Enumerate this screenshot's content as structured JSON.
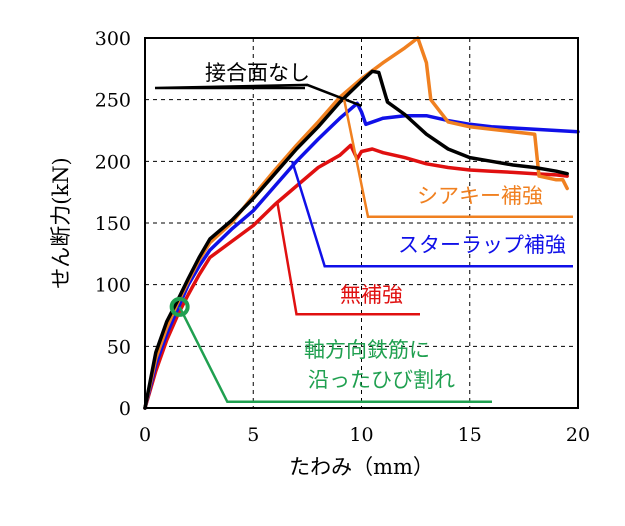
{
  "chart_data": {
    "type": "line",
    "xlabel": "たわみ（mm）",
    "ylabel": "せん断力(kN)",
    "xlim": [
      0,
      20
    ],
    "ylim": [
      0,
      300
    ],
    "xticks": [
      0,
      5,
      10,
      15,
      20
    ],
    "yticks": [
      0,
      50,
      100,
      150,
      200,
      250,
      300
    ],
    "grid": "dashed",
    "series": [
      {
        "name": "接合面なし",
        "color": "#000000",
        "points": [
          [
            0,
            0
          ],
          [
            0.5,
            45
          ],
          [
            1,
            70
          ],
          [
            1.5,
            87
          ],
          [
            2,
            105
          ],
          [
            2.5,
            122
          ],
          [
            3,
            137
          ],
          [
            4,
            152
          ],
          [
            5,
            170
          ],
          [
            6,
            190
          ],
          [
            7,
            210
          ],
          [
            8,
            228
          ],
          [
            9,
            248
          ],
          [
            10,
            265
          ],
          [
            10.5,
            273
          ],
          [
            10.8,
            272
          ],
          [
            11,
            260
          ],
          [
            11.2,
            248
          ],
          [
            12,
            238
          ],
          [
            13,
            222
          ],
          [
            14,
            210
          ],
          [
            15,
            203
          ],
          [
            16,
            200
          ],
          [
            17,
            197
          ],
          [
            18,
            195
          ],
          [
            19,
            192
          ],
          [
            19.5,
            190
          ]
        ]
      },
      {
        "name": "シアキー補強",
        "color": "#f08020",
        "points": [
          [
            0,
            0
          ],
          [
            0.5,
            40
          ],
          [
            1,
            65
          ],
          [
            1.5,
            85
          ],
          [
            2,
            103
          ],
          [
            2.5,
            120
          ],
          [
            3,
            134
          ],
          [
            4,
            150
          ],
          [
            5,
            172
          ],
          [
            6,
            193
          ],
          [
            7,
            213
          ],
          [
            8,
            232
          ],
          [
            9,
            252
          ],
          [
            10,
            267
          ],
          [
            11,
            280
          ],
          [
            12,
            292
          ],
          [
            12.6,
            300
          ],
          [
            13,
            280
          ],
          [
            13.2,
            250
          ],
          [
            14,
            232
          ],
          [
            15,
            228
          ],
          [
            16,
            226
          ],
          [
            17,
            224
          ],
          [
            18,
            222
          ],
          [
            18.2,
            188
          ],
          [
            19,
            185
          ],
          [
            19.3,
            185
          ],
          [
            19.5,
            178
          ]
        ]
      },
      {
        "name": "スターラップ補強",
        "color": "#1010e8",
        "points": [
          [
            0,
            0
          ],
          [
            0.5,
            35
          ],
          [
            1,
            60
          ],
          [
            1.5,
            80
          ],
          [
            2,
            100
          ],
          [
            2.5,
            115
          ],
          [
            3,
            128
          ],
          [
            4,
            145
          ],
          [
            5,
            160
          ],
          [
            6,
            180
          ],
          [
            7,
            200
          ],
          [
            8,
            218
          ],
          [
            9,
            235
          ],
          [
            9.8,
            247
          ],
          [
            10,
            240
          ],
          [
            10.2,
            230
          ],
          [
            11,
            235
          ],
          [
            12,
            237
          ],
          [
            13,
            237
          ],
          [
            14,
            233
          ],
          [
            15,
            230
          ],
          [
            16,
            228
          ],
          [
            17,
            227
          ],
          [
            18,
            226
          ],
          [
            19,
            225
          ],
          [
            20,
            224
          ]
        ]
      },
      {
        "name": "無補強",
        "color": "#e01010",
        "points": [
          [
            0,
            0
          ],
          [
            0.5,
            30
          ],
          [
            1,
            55
          ],
          [
            1.5,
            75
          ],
          [
            2,
            92
          ],
          [
            2.5,
            108
          ],
          [
            3,
            122
          ],
          [
            4,
            135
          ],
          [
            5,
            148
          ],
          [
            6,
            165
          ],
          [
            7,
            180
          ],
          [
            8,
            195
          ],
          [
            9,
            205
          ],
          [
            9.5,
            213
          ],
          [
            9.8,
            202
          ],
          [
            10,
            208
          ],
          [
            10.5,
            210
          ],
          [
            11,
            207
          ],
          [
            12,
            203
          ],
          [
            13,
            198
          ],
          [
            14,
            195
          ],
          [
            15,
            193
          ],
          [
            16,
            192
          ],
          [
            17,
            191
          ],
          [
            18,
            190
          ],
          [
            19,
            189
          ],
          [
            19.5,
            188
          ]
        ]
      }
    ],
    "annotations": [
      {
        "text": "接合面なし",
        "color": "#000000"
      },
      {
        "text": "シアキー補強",
        "color": "#f08020"
      },
      {
        "text": "スターラップ補強",
        "color": "#1010e8"
      },
      {
        "text": "無補強",
        "color": "#e01010"
      },
      {
        "text": "軸方向鉄筋に",
        "color": "#20a050"
      },
      {
        "text": "沿ったひび割れ",
        "color": "#20a050"
      }
    ],
    "marker": {
      "x": 1.6,
      "y": 82,
      "color": "#20a050"
    }
  }
}
